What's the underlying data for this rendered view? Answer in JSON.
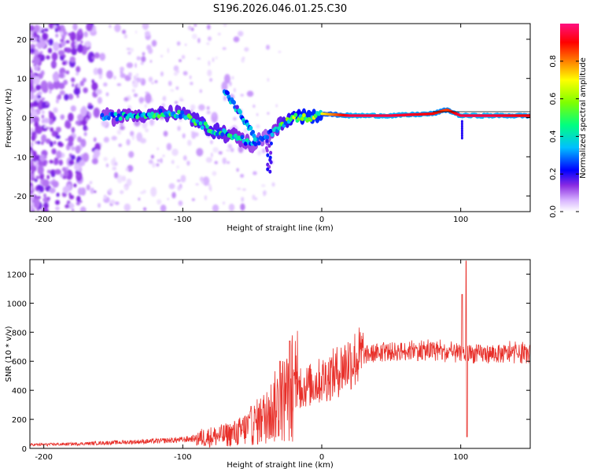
{
  "title": "S196.2026.046.01.25.C30",
  "chart_data": [
    {
      "type": "heatmap",
      "name": "spectrogram",
      "xlabel": "Height of straight line (km)",
      "ylabel": "Frequency (Hz)",
      "xlim": [
        -210,
        150
      ],
      "ylim": [
        -24,
        24
      ],
      "xticks": [
        -200,
        -100,
        0,
        100
      ],
      "xtick_labels": [
        "-200",
        "-100",
        "0",
        "100"
      ],
      "yticks": [
        20,
        10,
        0,
        -10,
        -20
      ],
      "ytick_labels": [
        "20",
        "10",
        "0",
        "-10",
        "-20"
      ],
      "colorbar": {
        "label": "Normalized spectral amplitude",
        "range": [
          0,
          1
        ],
        "ticks": [
          0.0,
          0.2,
          0.4,
          0.6,
          0.8
        ],
        "tick_labels": [
          "0.0",
          "0.2",
          "0.4",
          "0.6",
          "0.8"
        ],
        "colors": [
          "#ffffff",
          "#d8b4ff",
          "#8a2be2",
          "#0000ff",
          "#00bfff",
          "#00ff80",
          "#7fff00",
          "#ffff00",
          "#ff8000",
          "#ff0000",
          "#ff1080"
        ]
      },
      "ridge": {
        "description_points_x": [
          -158,
          -140,
          -120,
          -100,
          -80,
          -60,
          -50,
          -40,
          -30,
          -20,
          -10,
          0,
          20,
          50,
          80,
          90,
          100,
          120,
          150
        ],
        "frequency_hz": [
          0,
          0.5,
          1,
          1,
          -3,
          -5,
          -7,
          -5,
          -2,
          0,
          0,
          1,
          0.5,
          0.5,
          1,
          2,
          0.5,
          0.5,
          0.5
        ],
        "peak_amplitude": [
          0.35,
          0.4,
          0.45,
          0.45,
          0.5,
          0.4,
          0.35,
          0.3,
          0.45,
          0.6,
          0.7,
          0.7,
          0.95,
          0.95,
          0.9,
          0.85,
          0.95,
          0.95,
          0.9
        ]
      }
    },
    {
      "type": "line",
      "name": "snr",
      "xlabel": "Height of straight line (km)",
      "ylabel": "SNR (10 * v/v)",
      "xlim": [
        -210,
        150
      ],
      "ylim": [
        0,
        1300
      ],
      "xticks": [
        -200,
        -100,
        0,
        100
      ],
      "xtick_labels": [
        "-200",
        "-100",
        "0",
        "100"
      ],
      "yticks": [
        0,
        200,
        400,
        600,
        800,
        1000,
        1200
      ],
      "ytick_labels": [
        "0",
        "200",
        "400",
        "600",
        "800",
        "1000",
        "1200"
      ],
      "color": "#e8302a",
      "envelope": {
        "x": [
          -210,
          -180,
          -150,
          -120,
          -100,
          -80,
          -70,
          -60,
          -50,
          -40,
          -30,
          -20,
          -10,
          0,
          10,
          20,
          30,
          40,
          60,
          80,
          95,
          103,
          110,
          130,
          150
        ],
        "y": [
          25,
          30,
          40,
          50,
          60,
          80,
          90,
          110,
          160,
          220,
          320,
          400,
          430,
          470,
          520,
          600,
          640,
          660,
          670,
          670,
          650,
          650,
          650,
          650,
          650
        ]
      },
      "spikes": [
        {
          "x": -23,
          "y": 740
        },
        {
          "x": -30,
          "y": 600
        },
        {
          "x": 101,
          "y": 1060
        },
        {
          "x": 104,
          "y": 1290
        },
        {
          "x": 104.5,
          "y": 80
        }
      ]
    }
  ]
}
